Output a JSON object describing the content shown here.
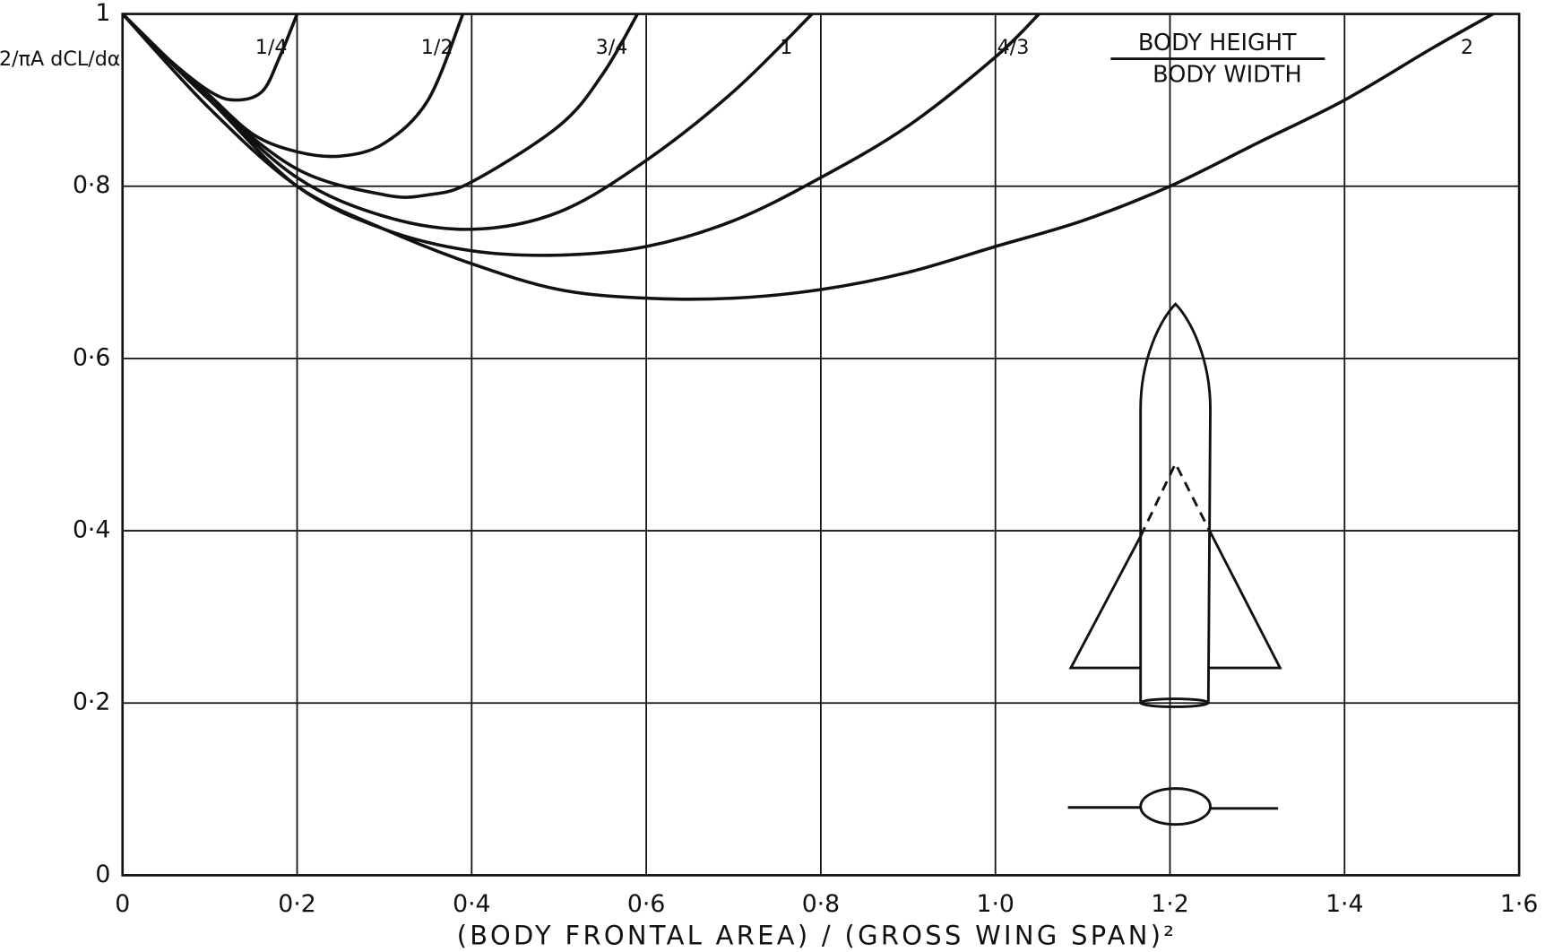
{
  "chart_data": {
    "type": "line",
    "y_label": "2/πA dCL/dα",
    "x_label": "(BODY FRONTAL AREA) / (GROSS WING SPAN)²",
    "legend_title_top": "BODY HEIGHT",
    "legend_title_bottom": "BODY WIDTH",
    "xlim": [
      0,
      1.6
    ],
    "ylim": [
      0,
      1
    ],
    "xticks": [
      0,
      {
        "value": 0.2,
        "label": "0·2"
      },
      {
        "value": 0.4,
        "label": "0·4"
      },
      {
        "value": 0.6,
        "label": "0·6"
      },
      {
        "value": 0.8,
        "label": "0·8"
      },
      {
        "value": 1.0,
        "label": "1·0"
      },
      {
        "value": 1.2,
        "label": "1·2"
      },
      {
        "value": 1.4,
        "label": "1·4"
      },
      {
        "value": 1.6,
        "label": "1·6"
      }
    ],
    "yticks": [
      0,
      {
        "value": 0.2,
        "label": "0·2"
      },
      {
        "value": 0.4,
        "label": "0·4"
      },
      {
        "value": 0.6,
        "label": "0·6"
      },
      {
        "value": 0.8,
        "label": "0·8"
      },
      1
    ],
    "grid": true,
    "series": [
      {
        "name": "1/4",
        "color": "#111111",
        "x": [
          0,
          0.05,
          0.1,
          0.13,
          0.16,
          0.18,
          0.2
        ],
        "values": [
          1,
          0.95,
          0.91,
          0.9,
          0.91,
          0.95,
          1.0
        ]
      },
      {
        "name": "1/2",
        "color": "#111111",
        "x": [
          0,
          0.05,
          0.1,
          0.15,
          0.2,
          0.25,
          0.3,
          0.35,
          0.39
        ],
        "values": [
          1,
          0.95,
          0.905,
          0.86,
          0.84,
          0.835,
          0.85,
          0.9,
          1.0
        ]
      },
      {
        "name": "3/4",
        "color": "#111111",
        "x": [
          0,
          0.1,
          0.2,
          0.3,
          0.35,
          0.4,
          0.5,
          0.55,
          0.59
        ],
        "values": [
          1,
          0.9,
          0.82,
          0.79,
          0.79,
          0.805,
          0.87,
          0.93,
          1.0
        ]
      },
      {
        "name": "1",
        "color": "#111111",
        "x": [
          0,
          0.1,
          0.2,
          0.3,
          0.4,
          0.5,
          0.6,
          0.7,
          0.79
        ],
        "values": [
          1,
          0.9,
          0.81,
          0.765,
          0.75,
          0.77,
          0.83,
          0.91,
          1.0
        ]
      },
      {
        "name": "4/3",
        "color": "#111111",
        "x": [
          0,
          0.1,
          0.2,
          0.3,
          0.4,
          0.5,
          0.6,
          0.7,
          0.8,
          0.9,
          1.0,
          1.05
        ],
        "values": [
          1,
          0.9,
          0.8,
          0.75,
          0.725,
          0.72,
          0.73,
          0.76,
          0.81,
          0.87,
          0.95,
          1.0
        ]
      },
      {
        "name": "2",
        "color": "#111111",
        "x": [
          0,
          0.1,
          0.2,
          0.3,
          0.4,
          0.5,
          0.6,
          0.7,
          0.8,
          0.9,
          1.0,
          1.1,
          1.2,
          1.3,
          1.4,
          1.5,
          1.57
        ],
        "values": [
          1,
          0.89,
          0.8,
          0.75,
          0.71,
          0.68,
          0.67,
          0.67,
          0.68,
          0.7,
          0.73,
          0.76,
          0.8,
          0.85,
          0.9,
          0.96,
          1.0
        ]
      }
    ]
  }
}
